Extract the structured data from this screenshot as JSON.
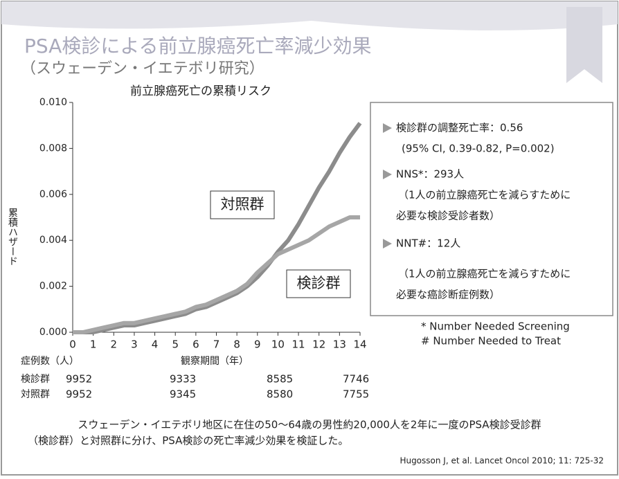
{
  "slide": {
    "title": "PSA検診による前立腺癌死亡率減少効果",
    "subtitle": "（スウェーデン・イエテボリ研究）",
    "info": [
      "検診群の調整死亡率：0.56",
      "(95% CI, 0.39-0.82, P=0.002)",
      "NNS*：293人",
      "（1人の前立腺癌死亡を減らすために",
      "必要な検診受診者数）",
      "NNT#：12人",
      "（1人の前立腺癌死亡を減らすために",
      "必要な癌診断症例数）"
    ],
    "footnotes": [
      "* Number Needed Screening",
      "# Number Needed to Treat"
    ],
    "description": [
      "スウェーデン・イエテボリ地区に在住の50～64歳の男性約20,000人を2年に一度のPSA検診受診群",
      "（検診群）と対照群に分け、PSA検診の死亡率減少効果を検証した。"
    ],
    "citation": "Hugosson J, et al. Lancet Oncol 2010; 11: 725-32"
  },
  "risk_table": {
    "header": "症例数（人）",
    "rows": [
      {
        "label": "検診群",
        "counts": [
          "9952",
          "9333",
          "8585",
          "7746"
        ]
      },
      {
        "label": "対照群",
        "counts": [
          "9952",
          "9345",
          "8580",
          "7755"
        ]
      }
    ]
  },
  "chart_data": {
    "type": "line",
    "title": "前立腺癌死亡の累積リスク",
    "x_label": "観察期間（年）",
    "y_label": "累積ハザード",
    "x": [
      0,
      0.5,
      1,
      1.5,
      2,
      2.5,
      3,
      3.5,
      4,
      4.5,
      5,
      5.5,
      6,
      6.5,
      7,
      7.5,
      8,
      8.5,
      9,
      9.5,
      10,
      10.5,
      11,
      11.5,
      12,
      12.5,
      13,
      13.5,
      14
    ],
    "series": [
      {
        "name": "対照群",
        "color": "#8c8c8c",
        "values": [
          0,
          0,
          0,
          0.0001,
          0.0002,
          0.0003,
          0.0003,
          0.0004,
          0.0005,
          0.0006,
          0.0007,
          0.0008,
          0.001,
          0.0011,
          0.0013,
          0.0015,
          0.0017,
          0.002,
          0.0024,
          0.0029,
          0.0035,
          0.004,
          0.0047,
          0.0055,
          0.0063,
          0.007,
          0.0078,
          0.0085,
          0.0091
        ]
      },
      {
        "name": "検診群",
        "color": "#a6a6a6",
        "values": [
          0,
          0,
          0.0001,
          0.0002,
          0.0003,
          0.0004,
          0.0004,
          0.0005,
          0.0006,
          0.0007,
          0.0008,
          0.0009,
          0.0011,
          0.0012,
          0.0014,
          0.0016,
          0.0018,
          0.0021,
          0.0026,
          0.003,
          0.0034,
          0.0036,
          0.0038,
          0.004,
          0.0043,
          0.0046,
          0.0048,
          0.005,
          0.005
        ]
      }
    ],
    "xlim": [
      0,
      14
    ],
    "xticks": [
      0,
      1,
      2,
      3,
      4,
      5,
      6,
      7,
      8,
      9,
      10,
      11,
      12,
      13,
      14
    ],
    "ylim": [
      0,
      0.01
    ],
    "yticks": [
      {
        "value": 0,
        "label": "0.000"
      },
      {
        "value": 0.002,
        "label": "0.002"
      },
      {
        "value": 0.004,
        "label": "0.004"
      },
      {
        "value": 0.006,
        "label": "0.006"
      },
      {
        "value": 0.008,
        "label": "0.008"
      },
      {
        "value": 0.01,
        "label": "0.010"
      }
    ]
  }
}
